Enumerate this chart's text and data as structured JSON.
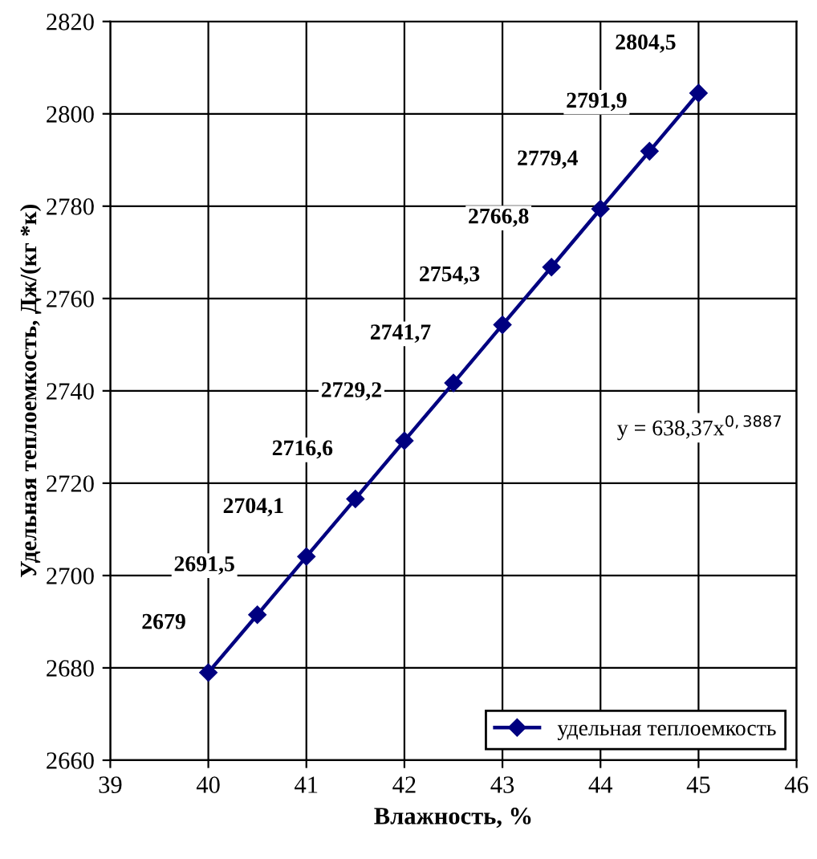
{
  "chart_data": {
    "type": "line",
    "xlabel": "Влажность, %",
    "ylabel": "Удельная теплоемкость, Дж/(кг *к)",
    "x": [
      40,
      40.5,
      41,
      41.5,
      42,
      42.5,
      43,
      43.5,
      44,
      44.5,
      45
    ],
    "series": [
      {
        "name": "удельная теплоемкость",
        "color": "#000080",
        "values": [
          2679,
          2691.5,
          2704.1,
          2716.6,
          2729.2,
          2741.7,
          2754.3,
          2766.8,
          2779.4,
          2791.9,
          2804.5
        ],
        "value_labels": [
          "2679",
          "2691,5",
          "2704,1",
          "2716,6",
          "2729,2",
          "2741,7",
          "2754,3",
          "2766,8",
          "2779,4",
          "2791,9",
          "2804,5"
        ]
      }
    ],
    "annotations": [
      "y = 638,37x$^{0,3887}$"
    ],
    "xlim": [
      39,
      46
    ],
    "xticks": [
      39,
      40,
      41,
      42,
      43,
      44,
      45,
      46
    ],
    "ylim": [
      2660,
      2820
    ],
    "yticks": [
      2660,
      2680,
      2700,
      2720,
      2740,
      2760,
      2780,
      2800,
      2820
    ],
    "grid": true,
    "legend": "bottom right",
    "marker": "diamond",
    "line_style": "solid"
  }
}
